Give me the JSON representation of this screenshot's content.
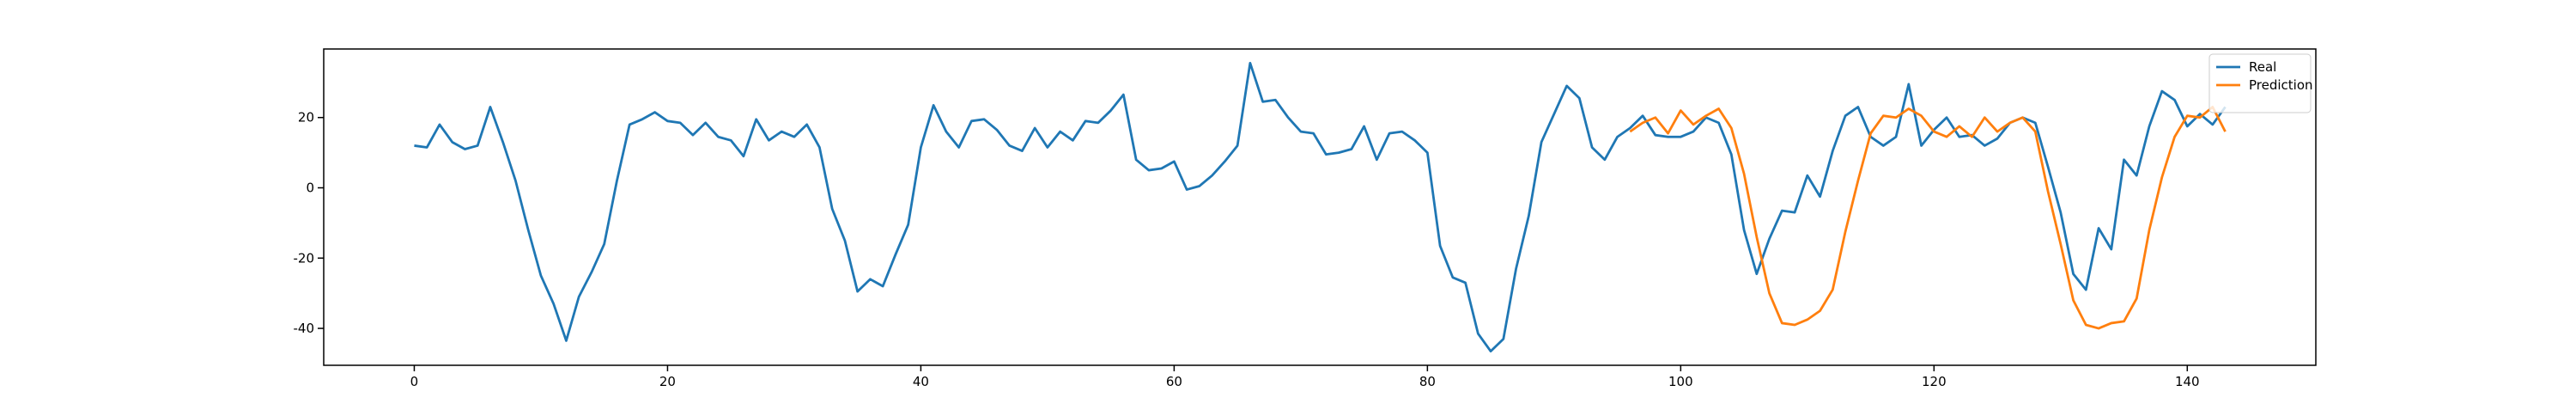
{
  "chart_data": {
    "type": "line",
    "xlim": [
      -7.15,
      150.15
    ],
    "ylim": [
      -50.5,
      39.5
    ],
    "xticks": [
      0,
      20,
      40,
      60,
      80,
      100,
      120,
      140
    ],
    "yticks": [
      -40,
      -20,
      0,
      20
    ],
    "legend": "upper right",
    "series": [
      {
        "name": "Real",
        "color": "#1f77b4",
        "x": [
          0,
          1,
          2,
          3,
          4,
          5,
          6,
          7,
          8,
          9,
          10,
          11,
          12,
          13,
          14,
          15,
          16,
          17,
          18,
          19,
          20,
          21,
          22,
          23,
          24,
          25,
          26,
          27,
          28,
          29,
          30,
          31,
          32,
          33,
          34,
          35,
          36,
          37,
          38,
          39,
          40,
          41,
          42,
          43,
          44,
          45,
          46,
          47,
          48,
          49,
          50,
          51,
          52,
          53,
          54,
          55,
          56,
          57,
          58,
          59,
          60,
          61,
          62,
          63,
          64,
          65,
          66,
          67,
          68,
          69,
          70,
          71,
          72,
          73,
          74,
          75,
          76,
          77,
          78,
          79,
          80,
          81,
          82,
          83,
          84,
          85,
          86,
          87,
          88,
          89,
          90,
          91,
          92,
          93,
          94,
          95,
          96,
          97,
          98,
          99,
          100,
          101,
          102,
          103,
          104,
          105,
          106,
          107,
          108,
          109,
          110,
          111,
          112,
          113,
          114,
          115,
          116,
          117,
          118,
          119,
          120,
          121,
          122,
          123,
          124,
          125,
          126,
          127,
          128,
          129,
          130,
          131,
          132,
          133,
          134,
          135,
          136,
          137,
          138,
          139,
          140,
          141,
          142,
          143
        ],
        "values": [
          12,
          11.5,
          18,
          13,
          11,
          12,
          23,
          13,
          2,
          -12,
          -25,
          -33,
          -43.5,
          -31,
          -24,
          -16,
          2,
          18,
          19.5,
          21.5,
          19,
          18.5,
          15,
          18.5,
          14.5,
          13.5,
          9,
          19.5,
          13.5,
          16,
          14.5,
          18,
          11.5,
          -6,
          -15,
          -29.5,
          -26,
          -28,
          -19,
          -10.5,
          11.5,
          23.5,
          16,
          11.5,
          19,
          19.5,
          16.5,
          12,
          10.5,
          17,
          11.5,
          16,
          13.5,
          19,
          18.5,
          22,
          26.5,
          8,
          5,
          5.5,
          7.5,
          -0.5,
          0.5,
          3.5,
          7.5,
          12,
          35.5,
          24.5,
          25,
          20,
          16,
          15.5,
          9.5,
          10,
          11,
          17.5,
          8,
          15.5,
          16,
          13.5,
          10,
          -16.5,
          -25.5,
          -27,
          -41.5,
          -46.5,
          -43,
          -23,
          -8,
          13,
          21,
          29,
          25.5,
          11.5,
          8,
          14.5,
          17,
          20.5,
          15,
          14.5,
          14.5,
          16,
          20,
          18.5,
          9.5,
          -12,
          -24.5,
          -14.5,
          -6.5,
          -7,
          3.5,
          -2.5,
          10.5,
          20.5,
          23,
          14.5,
          12,
          14.5,
          29.5,
          12,
          16.5,
          20,
          14.5,
          15,
          12,
          14,
          18.5,
          20,
          18.5,
          6,
          -7,
          -24.5,
          -29,
          -11.5,
          -17.5,
          8,
          3.5,
          17.5,
          27.5,
          25,
          17.5,
          21,
          18,
          23
        ]
      },
      {
        "name": "Prediction",
        "color": "#ff7f0e",
        "x": [
          96,
          97,
          98,
          99,
          100,
          101,
          102,
          103,
          104,
          105,
          106,
          107,
          108,
          109,
          110,
          111,
          112,
          113,
          114,
          115,
          116,
          117,
          118,
          119,
          120,
          121,
          122,
          123,
          124,
          125,
          126,
          127,
          128,
          129,
          130,
          131,
          132,
          133,
          134,
          135,
          136,
          137,
          138,
          139,
          140,
          141,
          142,
          143
        ],
        "values": [
          16,
          18.5,
          20,
          15.5,
          22,
          18,
          20.5,
          22.5,
          17,
          4,
          -14,
          -30,
          -38.5,
          -39,
          -37.5,
          -35,
          -29,
          -12.5,
          2,
          15.5,
          20.5,
          20,
          22.5,
          20.5,
          16,
          14.5,
          17.5,
          14.5,
          20,
          16,
          18.5,
          20,
          16,
          -1,
          -16,
          -32,
          -39,
          -40,
          -38.5,
          -38,
          -31.5,
          -12,
          3,
          14.5,
          20.5,
          20,
          23,
          16
        ]
      }
    ]
  }
}
